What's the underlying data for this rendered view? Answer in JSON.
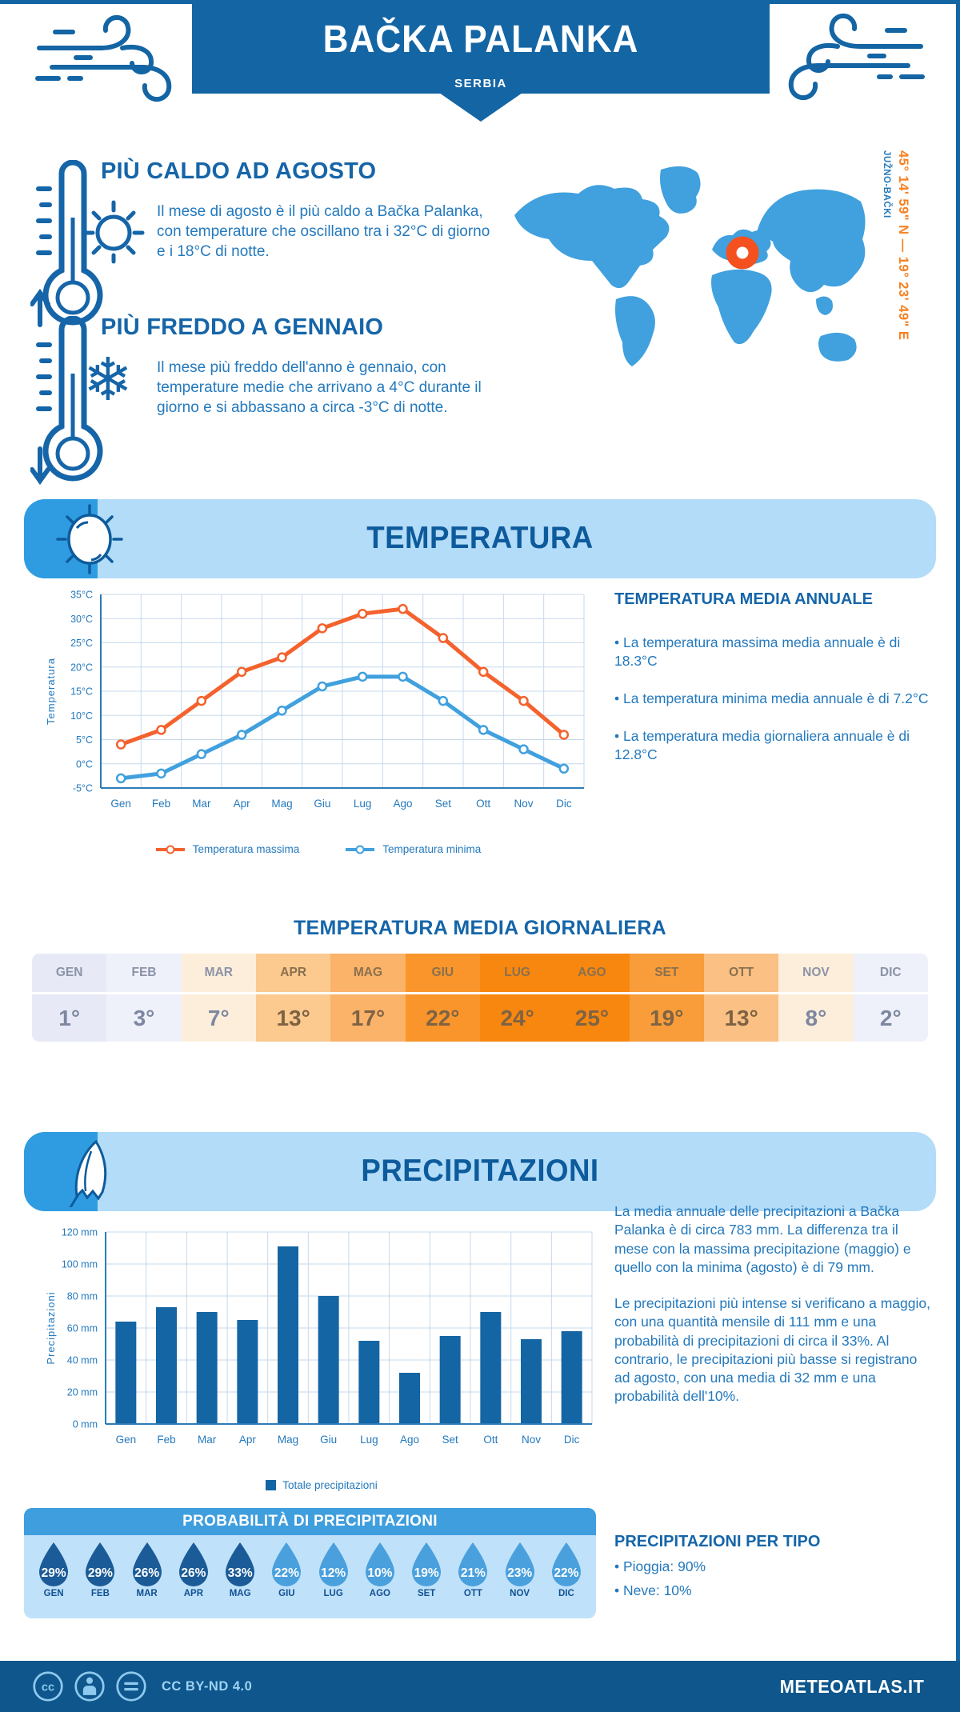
{
  "header": {
    "title": "BAČKA PALANKA",
    "subtitle": "SERBIA"
  },
  "location": {
    "coordinates": "45° 14' 59\" N — 19° 23' 49\" E",
    "region": "JUŽNO-BAČKI"
  },
  "highlights": {
    "warm": {
      "title": "PIÙ CALDO AD AGOSTO",
      "text": "Il mese di agosto è il più caldo a Bačka Palanka, con temperature che oscillano tra i 32°C di giorno e i 18°C di notte."
    },
    "cold": {
      "title": "PIÙ FREDDO A GENNAIO",
      "text": "Il mese più freddo dell'anno è gennaio, con temperature medie che arrivano a 4°C durante il giorno e si abbassano a circa -3°C di notte."
    }
  },
  "temperature": {
    "section_title": "TEMPERATURA",
    "annual_title": "TEMPERATURA MEDIA ANNUALE",
    "annual_bullets": [
      "• La temperatura massima media annuale è di 18.3°C",
      "• La temperatura minima media annuale è di 7.2°C",
      "• La temperatura media giornaliera annuale è di 12.8°C"
    ],
    "daily_title": "TEMPERATURA MEDIA GIORNALIERA",
    "table": {
      "months": [
        "GEN",
        "FEB",
        "MAR",
        "APR",
        "MAG",
        "GIU",
        "LUG",
        "AGO",
        "SET",
        "OTT",
        "NOV",
        "DIC"
      ],
      "values": [
        "1°",
        "3°",
        "7°",
        "13°",
        "17°",
        "22°",
        "24°",
        "25°",
        "19°",
        "13°",
        "8°",
        "2°"
      ],
      "cell_colors": [
        "#e7eaf6",
        "#eef0fa",
        "#fdeedb",
        "#fcc98e",
        "#fbb269",
        "#f9952b",
        "#f8870f",
        "#f8870f",
        "#f99c3a",
        "#fbc083",
        "#fdeedb",
        "#eef0fa"
      ],
      "warm_cells": [
        3,
        4,
        5,
        6,
        7,
        8,
        9
      ],
      "label_color_light": "#8b93a7",
      "label_color_warm": "#89704f",
      "value_color_light": "#7d87a0",
      "value_color_warm": "#7d6344"
    }
  },
  "precipitation": {
    "section_title": "PRECIPITAZIONI",
    "paragraphs": [
      "La media annuale delle precipitazioni a Bačka Palanka è di circa 783 mm. La differenza tra il mese con la massima precipitazione (maggio) e quello con la minima (agosto) è di 79 mm.",
      "Le precipitazioni più intense si verificano a maggio, con una quantità mensile di 111 mm e una probabilità di precipitazioni di circa il 33%. Al contrario, le precipitazioni più basse si registrano ad agosto, con una media di 32 mm e una probabilità dell'10%."
    ],
    "probability_title": "PROBABILITÀ DI PRECIPITAZIONI",
    "drops": {
      "months": [
        "GEN",
        "FEB",
        "MAR",
        "APR",
        "MAG",
        "GIU",
        "LUG",
        "AGO",
        "SET",
        "OTT",
        "NOV",
        "DIC"
      ],
      "values": [
        "29%",
        "29%",
        "26%",
        "26%",
        "33%",
        "22%",
        "12%",
        "10%",
        "19%",
        "21%",
        "23%",
        "22%"
      ],
      "dark_color": "#1b5b97",
      "light_color": "#4aa0dd",
      "dark_count": 5
    },
    "per_type": {
      "title": "PRECIPITAZIONI PER TIPO",
      "bullets": [
        "• Pioggia: 90%",
        "• Neve: 10%"
      ]
    }
  },
  "footer": {
    "license": "CC BY-ND 4.0",
    "brand": "METEOATLAS.IT"
  },
  "icons": {
    "wind": "wind-swirl-icon",
    "thermometer_warm": "thermometer-up-icon",
    "thermometer_cold": "thermometer-down-icon",
    "sun": "sun-icon",
    "snowflake": "❄",
    "map_marker": "location-ring-icon",
    "umbrella": "umbrella-icon",
    "cc": "cc-icon",
    "cc_by": "attribution-person-icon",
    "cc_nd": "no-derivatives-icon"
  },
  "colors": {
    "banner_blue": "#1465a4",
    "footer_blue": "#0e568c",
    "light_banner": "#b3dcf8",
    "banner_left": "#2f9ce1",
    "panel_bg": "#bfe2fa",
    "prob_header": "#3f9edd",
    "map_blue": "#41a0de",
    "marker_orange": "#f4511f",
    "coord_orange": "#f58122",
    "text_blue": "#2479bd",
    "heading_blue": "#1565a8",
    "navy_title": "#0d5b9c",
    "grid": "#c7d9ec",
    "axis": "#2b7cb8"
  },
  "chart_data": [
    {
      "type": "line",
      "title": "Temperatura",
      "categories": [
        "Gen",
        "Feb",
        "Mar",
        "Apr",
        "Mag",
        "Giu",
        "Lug",
        "Ago",
        "Set",
        "Ott",
        "Nov",
        "Dic"
      ],
      "series": [
        {
          "name": "Temperatura massima",
          "color": "#f4622d",
          "values": [
            4,
            7,
            13,
            19,
            22,
            28,
            31,
            32,
            26,
            19,
            13,
            6
          ]
        },
        {
          "name": "Temperatura minima",
          "color": "#41a0de",
          "values": [
            -3,
            -2,
            2,
            6,
            11,
            16,
            18,
            18,
            13,
            7,
            3,
            -1
          ]
        }
      ],
      "ylabel": "Temperatura",
      "xlabel": "",
      "ylim": [
        -5,
        35
      ],
      "ytick_step": 5,
      "ytick_suffix": "°C",
      "grid": true,
      "legend_position": "bottom"
    },
    {
      "type": "bar",
      "title": "Precipitazioni",
      "categories": [
        "Gen",
        "Feb",
        "Mar",
        "Apr",
        "Mag",
        "Giu",
        "Lug",
        "Ago",
        "Set",
        "Ott",
        "Nov",
        "Dic"
      ],
      "series": [
        {
          "name": "Totale precipitazioni",
          "color": "#1465a3",
          "values": [
            64,
            73,
            70,
            65,
            111,
            80,
            52,
            32,
            55,
            70,
            53,
            58
          ]
        }
      ],
      "ylabel": "Precipitazioni",
      "xlabel": "",
      "ylim": [
        0,
        120
      ],
      "ytick_step": 20,
      "ytick_suffix": " mm",
      "grid": true,
      "legend_position": "bottom"
    }
  ]
}
